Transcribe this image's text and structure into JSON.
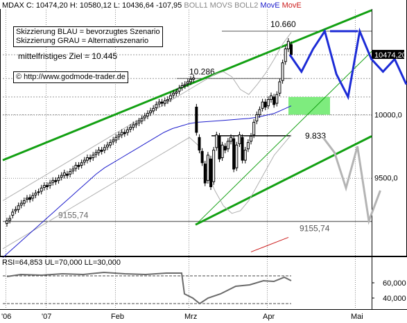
{
  "header": {
    "symbol": "MDAX",
    "quote": "C: 10474,20 H: 10580,12 L: 10436,64 -107,95",
    "indicators": [
      {
        "name": "BOLL1",
        "color": "#888888"
      },
      {
        "name": "MOVS",
        "color": "#888888"
      },
      {
        "name": "BOLL2",
        "color": "#888888"
      },
      {
        "name": "MovE",
        "color": "#1c1ccc"
      },
      {
        "name": "MovE",
        "color": "#cc1c1c"
      }
    ]
  },
  "annotations": {
    "legend_blue": "Skizzierung BLAU = bevorzugtes Szenario",
    "legend_gray": "Skizzierung GRAU = Alternativszenario",
    "target": "mittelfristiges Ziel = 10.445",
    "copyright": "© http://www.godmode-trader.de"
  },
  "levels": [
    {
      "label": "10.660",
      "value": 10660
    },
    {
      "label": "10.286",
      "value": 10286
    },
    {
      "label": "9.833",
      "value": 9833
    },
    {
      "label": "9155,74",
      "value": 9155.74
    }
  ],
  "price_tag": "10474,20",
  "rsi": {
    "label": "RSI=64,853 UL=70,000 LL=30,000",
    "ticks": [
      "60,000",
      "40,000"
    ]
  },
  "colors": {
    "channel": "#12a012",
    "blue_scenario": "#1c2bd6",
    "gray_scenario": "#b4b4b4",
    "zone": "#7eec7e",
    "ma_blue": "#1c1ccc",
    "ma_red": "#cc1c1c",
    "bollinger": "#b0b0b0"
  },
  "chart_data": {
    "type": "candlestick",
    "x_ticks": [
      "'06",
      "'07",
      "Feb",
      "Mrz",
      "Apr",
      "Mai"
    ],
    "y_ticks": [
      10000,
      9500
    ],
    "y_tick_labels": [
      "10000,0",
      "9500,0"
    ],
    "ylim": [
      8890,
      10830
    ],
    "grid": true,
    "close": [
      9160,
      9180,
      9230,
      9250,
      9280,
      9300,
      9320,
      9340,
      9330,
      9360,
      9380,
      9390,
      9420,
      9440,
      9430,
      9460,
      9480,
      9470,
      9500,
      9520,
      9540,
      9520,
      9550,
      9570,
      9600,
      9590,
      9620,
      9640,
      9660,
      9650,
      9680,
      9700,
      9720,
      9710,
      9740,
      9760,
      9780,
      9800,
      9820,
      9840,
      9860,
      9850,
      9880,
      9900,
      9920,
      9930,
      9950,
      9970,
      9990,
      10010,
      10030,
      10050,
      10080,
      10100,
      10090,
      10110,
      10120,
      10150,
      10170,
      10180,
      10210,
      10230,
      10240,
      10260,
      10280,
      10290,
      9860,
      9720,
      9620,
      9460,
      9680,
      9430,
      9720,
      9840,
      9650,
      9760,
      9720,
      9790,
      9820,
      9570,
      9760,
      9840,
      9640,
      9720,
      9780,
      9830,
      9940,
      10000,
      10040,
      10100,
      10060,
      10120,
      10150,
      10080,
      10160,
      10260,
      10410,
      10520,
      10580,
      10474
    ],
    "open_offset": [
      -20,
      -15,
      -25,
      -10,
      -30,
      -15,
      -20,
      -10,
      15,
      -20,
      -15,
      -5,
      -25,
      -15,
      10,
      -20,
      -15,
      10,
      -20,
      -15,
      -20,
      10,
      -20,
      -15,
      -25,
      10,
      -20,
      -15,
      -20,
      10,
      -20,
      -15,
      -20,
      10,
      -20,
      -15,
      -20,
      -15,
      -20,
      -15,
      -20,
      10,
      -20,
      -15,
      -20,
      -10,
      -15,
      -20,
      -15,
      -20,
      -15,
      -20,
      -25,
      -15,
      10,
      -20,
      -10,
      -25,
      -15,
      -10,
      -25,
      -15,
      -10,
      -15,
      -20,
      -10,
      200,
      100,
      90,
      150,
      -200,
      220,
      -250,
      -100,
      180,
      -100,
      30,
      -60,
      -30,
      240,
      -180,
      -70,
      180,
      -80,
      -50,
      -40,
      -100,
      -50,
      -40,
      -50,
      40,
      -50,
      -30,
      60,
      -70,
      -90,
      -140,
      -100,
      -60,
      80
    ],
    "bollinger_upper": [
      9320,
      9360,
      9400,
      9440,
      9480,
      9520,
      9560,
      9600,
      9640,
      9680,
      9720,
      9760,
      9800,
      9840,
      9880,
      9920,
      9960,
      10000,
      10040,
      10080,
      10120,
      10160,
      10200,
      10240,
      10280,
      10320,
      10340,
      10300,
      10200,
      10160,
      10240,
      10330,
      10440,
      10560,
      10650
    ],
    "bollinger_lower": [
      8940,
      8980,
      9020,
      9060,
      9100,
      9140,
      9180,
      9220,
      9260,
      9300,
      9340,
      9380,
      9420,
      9460,
      9500,
      9540,
      9580,
      9620,
      9660,
      9700,
      9740,
      9780,
      9820,
      9760,
      9560,
      9400,
      9280,
      9220,
      9240,
      9320,
      9440,
      9560,
      9680,
      9760,
      9840
    ],
    "ma_blue": [
      8870,
      8930,
      8990,
      9050,
      9110,
      9170,
      9230,
      9290,
      9350,
      9410,
      9470,
      9530,
      9580,
      9620,
      9660,
      9700,
      9740,
      9780,
      9820,
      9860,
      9890,
      9910,
      9930,
      9940,
      9945,
      9950,
      9955,
      9960,
      9965,
      9970,
      9980,
      9995,
      10010,
      10040,
      10070
    ],
    "blue_scenario": [
      [
        10474,
        0
      ],
      [
        10340,
        1
      ],
      [
        10520,
        2
      ],
      [
        10660,
        3
      ],
      [
        10320,
        4
      ],
      [
        10140,
        5
      ],
      [
        10660,
        6
      ],
      [
        10440,
        7
      ],
      [
        10340,
        8
      ],
      [
        10440,
        9
      ],
      [
        10240,
        10
      ]
    ],
    "gray_scenario": [
      [
        9820,
        0
      ],
      [
        9700,
        1
      ],
      [
        9420,
        2
      ],
      [
        9750,
        3
      ],
      [
        9160,
        4
      ],
      [
        9400,
        5
      ]
    ]
  }
}
